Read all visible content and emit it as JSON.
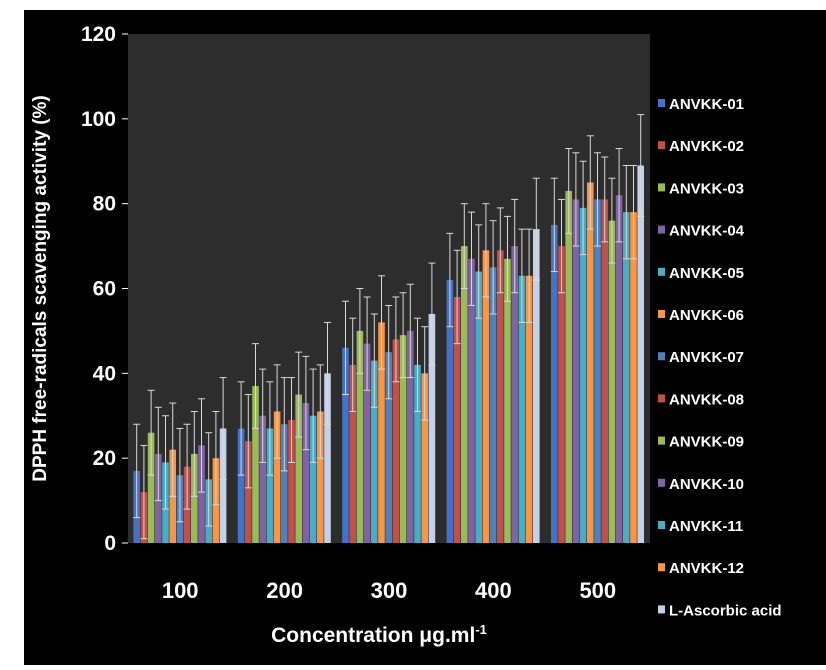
{
  "chart_data": {
    "type": "bar",
    "title": "",
    "xlabel_main": "Concentration μg.ml",
    "xlabel_sup": "-1",
    "ylabel": "DPPH free-radicals scavenging activity (%)",
    "ylim": [
      0,
      120
    ],
    "yticks": [
      0,
      20,
      40,
      60,
      80,
      100,
      120
    ],
    "grid": false,
    "legend_position": "right",
    "categories": [
      "100",
      "200",
      "300",
      "400",
      "500"
    ],
    "series": [
      {
        "name": "ANVKK-01",
        "color": "#4472c4",
        "values": [
          17,
          27,
          46,
          62,
          75
        ],
        "errors": [
          11,
          11,
          11,
          11,
          11
        ]
      },
      {
        "name": "ANVKK-02",
        "color": "#c0504d",
        "values": [
          12,
          24,
          42,
          58,
          70
        ],
        "errors": [
          11,
          11,
          11,
          11,
          11
        ]
      },
      {
        "name": "ANVKK-03",
        "color": "#9bbb59",
        "values": [
          26,
          37,
          50,
          70,
          83
        ],
        "errors": [
          10,
          10,
          10,
          10,
          10
        ]
      },
      {
        "name": "ANVKK-04",
        "color": "#8064a2",
        "values": [
          21,
          30,
          47,
          67,
          81
        ],
        "errors": [
          11,
          11,
          11,
          11,
          11
        ]
      },
      {
        "name": "ANVKK-05",
        "color": "#4bacc6",
        "values": [
          19,
          27,
          43,
          64,
          79
        ],
        "errors": [
          11,
          11,
          11,
          11,
          11
        ]
      },
      {
        "name": "ANVKK-06",
        "color": "#f79646",
        "values": [
          22,
          31,
          52,
          69,
          85
        ],
        "errors": [
          11,
          11,
          11,
          11,
          11
        ]
      },
      {
        "name": "ANVKK-07",
        "color": "#4f81bd",
        "values": [
          16,
          28,
          45,
          65,
          81
        ],
        "errors": [
          11,
          11,
          11,
          11,
          11
        ]
      },
      {
        "name": "ANVKK-08",
        "color": "#c0504d",
        "values": [
          18,
          29,
          48,
          69,
          81
        ],
        "errors": [
          10,
          10,
          10,
          10,
          10
        ]
      },
      {
        "name": "ANVKK-09",
        "color": "#9bbb59",
        "values": [
          21,
          35,
          49,
          67,
          76
        ],
        "errors": [
          10,
          10,
          10,
          10,
          10
        ]
      },
      {
        "name": "ANVKK-10",
        "color": "#8064a2",
        "values": [
          23,
          33,
          50,
          70,
          82
        ],
        "errors": [
          11,
          11,
          11,
          11,
          11
        ]
      },
      {
        "name": "ANVKK-11",
        "color": "#4bacc6",
        "values": [
          15,
          30,
          42,
          63,
          78
        ],
        "errors": [
          11,
          11,
          11,
          11,
          11
        ]
      },
      {
        "name": "ANVKK-12",
        "color": "#f79646",
        "values": [
          20,
          31,
          40,
          63,
          78
        ],
        "errors": [
          11,
          11,
          11,
          11,
          11
        ]
      },
      {
        "name": "L-Ascorbic acid",
        "color": "#c5d1e8",
        "values": [
          27,
          40,
          54,
          74,
          89
        ],
        "errors": [
          12,
          12,
          12,
          12,
          12
        ]
      }
    ]
  }
}
